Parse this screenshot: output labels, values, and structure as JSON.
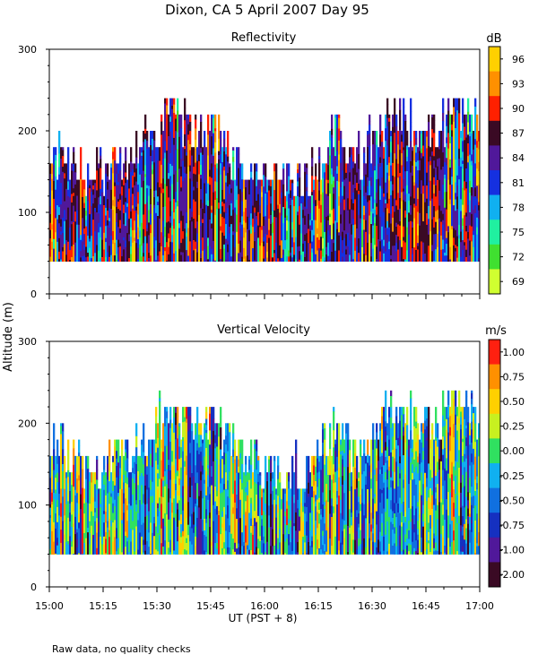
{
  "page_title": "Dixon, CA   5 April 2007   Day   95",
  "y_axis_label": "Altitude (m)",
  "x_axis_label": "UT  (PST + 8)",
  "footer_note": "Raw data, no quality checks",
  "chart_data": [
    {
      "type": "heatmap",
      "title": "Reflectivity",
      "xlabel": "UT  (PST + 8)",
      "ylabel": "Altitude (m)",
      "x_range": [
        "15:00",
        "17:00"
      ],
      "x_ticks": [
        "15:00",
        "15:15",
        "15:30",
        "15:45",
        "16:00",
        "16:15",
        "16:30",
        "16:45",
        "17:00"
      ],
      "ylim": [
        0,
        300
      ],
      "y_ticks": [
        "0",
        "100",
        "200",
        "300"
      ],
      "colorbar": {
        "unit": "dB",
        "labels": [
          "96",
          "93",
          "90",
          "87",
          "84",
          "81",
          "78",
          "75",
          "72",
          "69"
        ],
        "colors": [
          "#ffd000",
          "#ff9000",
          "#ff2000",
          "#3a0a24",
          "#50189a",
          "#1530e0",
          "#10b0f0",
          "#20f0a0",
          "#40e030",
          "#d0ff30"
        ]
      },
      "data_floor_m": 40,
      "column_top_profile_m": [
        180,
        160,
        140,
        160,
        160,
        200,
        220,
        200,
        200,
        160,
        160,
        140,
        140,
        160,
        200,
        160,
        200,
        220,
        200,
        200,
        240,
        200
      ],
      "color_weights": [
        0,
        0,
        1,
        3,
        6,
        14,
        10,
        4,
        1,
        0
      ],
      "palette_colors": [
        "#d0ff30",
        "#40e030",
        "#20f0a0",
        "#10b0f0",
        "#1530e0",
        "#50189a",
        "#3a0a24",
        "#ff2000",
        "#ff9000",
        "#ffd000"
      ]
    },
    {
      "type": "heatmap",
      "title": "Vertical Velocity",
      "xlabel": "UT  (PST + 8)",
      "ylabel": "Altitude (m)",
      "x_range": [
        "15:00",
        "17:00"
      ],
      "x_ticks": [
        "15:00",
        "15:15",
        "15:30",
        "15:45",
        "16:00",
        "16:15",
        "16:30",
        "16:45",
        "17:00"
      ],
      "ylim": [
        0,
        300
      ],
      "y_ticks": [
        "0",
        "100",
        "200",
        "300"
      ],
      "colorbar": {
        "unit": "m/s",
        "labels": [
          "1.00",
          "0.75",
          "0.50",
          "0.25",
          "0.00",
          "-0.25",
          "-0.50",
          "-0.75",
          "-1.00",
          "-2.00"
        ],
        "colors": [
          "#ff2010",
          "#ff9000",
          "#ffd000",
          "#c8f020",
          "#30e060",
          "#10b0f0",
          "#1070e0",
          "#1530c0",
          "#50189a",
          "#3a0a24"
        ]
      },
      "data_floor_m": 40,
      "column_top_profile_m": [
        180,
        160,
        140,
        160,
        160,
        200,
        220,
        200,
        200,
        160,
        160,
        140,
        140,
        160,
        200,
        160,
        200,
        220,
        200,
        200,
        240,
        200
      ],
      "color_weights": [
        1,
        2,
        6,
        10,
        12,
        10,
        6,
        4,
        1,
        0
      ],
      "palette_colors": [
        "#3a0a24",
        "#50189a",
        "#1530c0",
        "#1070e0",
        "#10b0f0",
        "#30e060",
        "#c8f020",
        "#ffd000",
        "#ff9000",
        "#ff2010"
      ]
    }
  ]
}
